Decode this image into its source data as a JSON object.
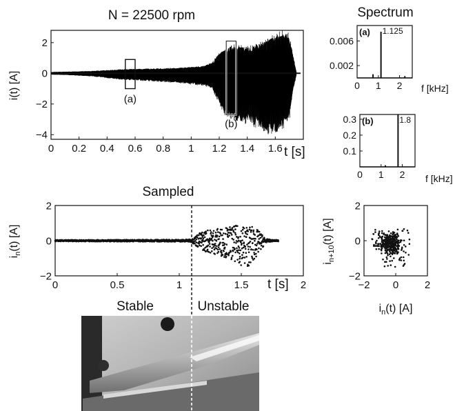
{
  "chart_data": [
    {
      "id": "raw",
      "type": "line",
      "title": "N = 22500 rpm",
      "xlabel": "t [s]",
      "ylabel": "i(t) [A]",
      "xlim": [
        0,
        1.8
      ],
      "ylim": [
        -4.3,
        2.8
      ],
      "xticks": [
        0,
        0.2,
        0.4,
        0.6,
        0.8,
        1,
        1.2,
        1.4,
        1.6
      ],
      "xtick_labels": [
        "0",
        "0.2",
        "0.4",
        "0.6",
        "0.8",
        "1",
        "1.2",
        "1.4",
        "1.6"
      ],
      "yticks": [
        2,
        0,
        -2,
        -4
      ],
      "ytick_labels": [
        "2",
        "0",
        "−2",
        "−4"
      ],
      "envelope": {
        "t": [
          0.0,
          0.1,
          0.2,
          0.3,
          0.4,
          0.5,
          0.6,
          0.7,
          0.8,
          0.9,
          1.0,
          1.1,
          1.15,
          1.2,
          1.25,
          1.3,
          1.35,
          1.4,
          1.45,
          1.5,
          1.55,
          1.6,
          1.65,
          1.7,
          1.72,
          1.75
        ],
        "upper": [
          0.08,
          0.1,
          0.12,
          0.15,
          0.2,
          0.25,
          0.28,
          0.3,
          0.32,
          0.35,
          0.4,
          0.5,
          0.7,
          1.3,
          1.6,
          1.8,
          1.8,
          1.7,
          1.8,
          2.0,
          2.2,
          2.5,
          2.7,
          2.5,
          1.5,
          0.1
        ],
        "lower": [
          -0.08,
          -0.1,
          -0.15,
          -0.2,
          -0.3,
          -0.4,
          -0.45,
          -0.5,
          -0.55,
          -0.6,
          -0.7,
          -0.8,
          -1.0,
          -2.0,
          -2.8,
          -3.0,
          -3.1,
          -3.2,
          -3.4,
          -3.6,
          -3.8,
          -4.0,
          -3.5,
          -3.0,
          -1.5,
          -0.1
        ]
      },
      "windows": [
        {
          "label": "(a)",
          "t": [
            0.53,
            0.6
          ],
          "i": [
            -1.0,
            0.9
          ]
        },
        {
          "label": "(b)",
          "t": [
            1.25,
            1.32
          ],
          "i": [
            -2.7,
            2.1
          ]
        }
      ]
    },
    {
      "id": "spec_a",
      "type": "bar",
      "title": "Spectrum",
      "panel_label": "(a)",
      "xlabel": "f [kHz]",
      "xlim": [
        0,
        2.6
      ],
      "ylim": [
        0,
        0.0085
      ],
      "xticks": [
        0,
        1,
        2
      ],
      "xtick_labels": [
        "0",
        "1",
        "2"
      ],
      "yticks": [
        0.006,
        0.002
      ],
      "ytick_labels": [
        "0.006",
        "0.002"
      ],
      "peaks": [
        {
          "f": 1.125,
          "amp": 0.0075
        },
        {
          "f": 0.75,
          "amp": 0.0006
        },
        {
          "f": 2.25,
          "amp": 0.0003
        }
      ],
      "peak_annotation": "1.125"
    },
    {
      "id": "spec_b",
      "type": "bar",
      "panel_label": "(b)",
      "xlabel": "f [kHz]",
      "xlim": [
        0,
        2.6
      ],
      "ylim": [
        0,
        0.33
      ],
      "xticks": [
        0,
        1,
        2
      ],
      "xtick_labels": [
        "0",
        "1",
        "2"
      ],
      "yticks": [
        0.3,
        0.2,
        0.1
      ],
      "ytick_labels": [
        "0.3",
        "0.2",
        "0.1"
      ],
      "peaks": [
        {
          "f": 1.8,
          "amp": 0.33
        },
        {
          "f": 1.2,
          "amp": 0.01
        }
      ],
      "peak_annotation": "1.8"
    },
    {
      "id": "sampled",
      "type": "scatter",
      "title": "Sampled",
      "xlabel": "t [s]",
      "ylabel": "i_n(t) [A]",
      "xlim": [
        0,
        2
      ],
      "ylim": [
        -2,
        2
      ],
      "xticks": [
        0,
        0.5,
        1,
        1.5,
        2
      ],
      "xtick_labels": [
        "0",
        "0.5",
        "1",
        "1.5",
        "2"
      ],
      "yticks": [
        2,
        0,
        -2
      ],
      "ytick_labels": [
        "2",
        "0",
        "−2"
      ],
      "stability_boundary_t": 1.1,
      "regions": [
        "Stable",
        "Unstable"
      ],
      "envelope": {
        "t": [
          0.0,
          0.5,
          1.0,
          1.1,
          1.15,
          1.2,
          1.3,
          1.4,
          1.5,
          1.55,
          1.6,
          1.65,
          1.7,
          1.75,
          1.8
        ],
        "upper": [
          0.04,
          0.05,
          0.06,
          0.08,
          0.4,
          0.6,
          0.7,
          0.8,
          0.9,
          0.9,
          0.8,
          0.5,
          0.1,
          0.05,
          0.04
        ],
        "lower": [
          -0.04,
          -0.05,
          -0.06,
          -0.08,
          -0.4,
          -0.6,
          -0.8,
          -1.0,
          -1.4,
          -1.5,
          -1.2,
          -0.6,
          -0.1,
          -0.05,
          -0.04
        ]
      }
    },
    {
      "id": "return_map",
      "type": "scatter",
      "xlabel": "i_n(t) [A]",
      "ylabel": "i_{n+10}(t) [A]",
      "xlim": [
        -2,
        2
      ],
      "ylim": [
        -2,
        2
      ],
      "xticks": [
        -2,
        0,
        2
      ],
      "xtick_labels": [
        "−2",
        "0",
        "2"
      ],
      "yticks": [
        2,
        0,
        -2
      ],
      "ytick_labels": [
        "2",
        "0",
        "−2"
      ],
      "cloud": {
        "x_range": [
          -1.5,
          0.9
        ],
        "y_range": [
          -1.5,
          0.9
        ]
      }
    }
  ],
  "photo": {
    "left_label": "Stable",
    "right_label": "Unstable"
  }
}
